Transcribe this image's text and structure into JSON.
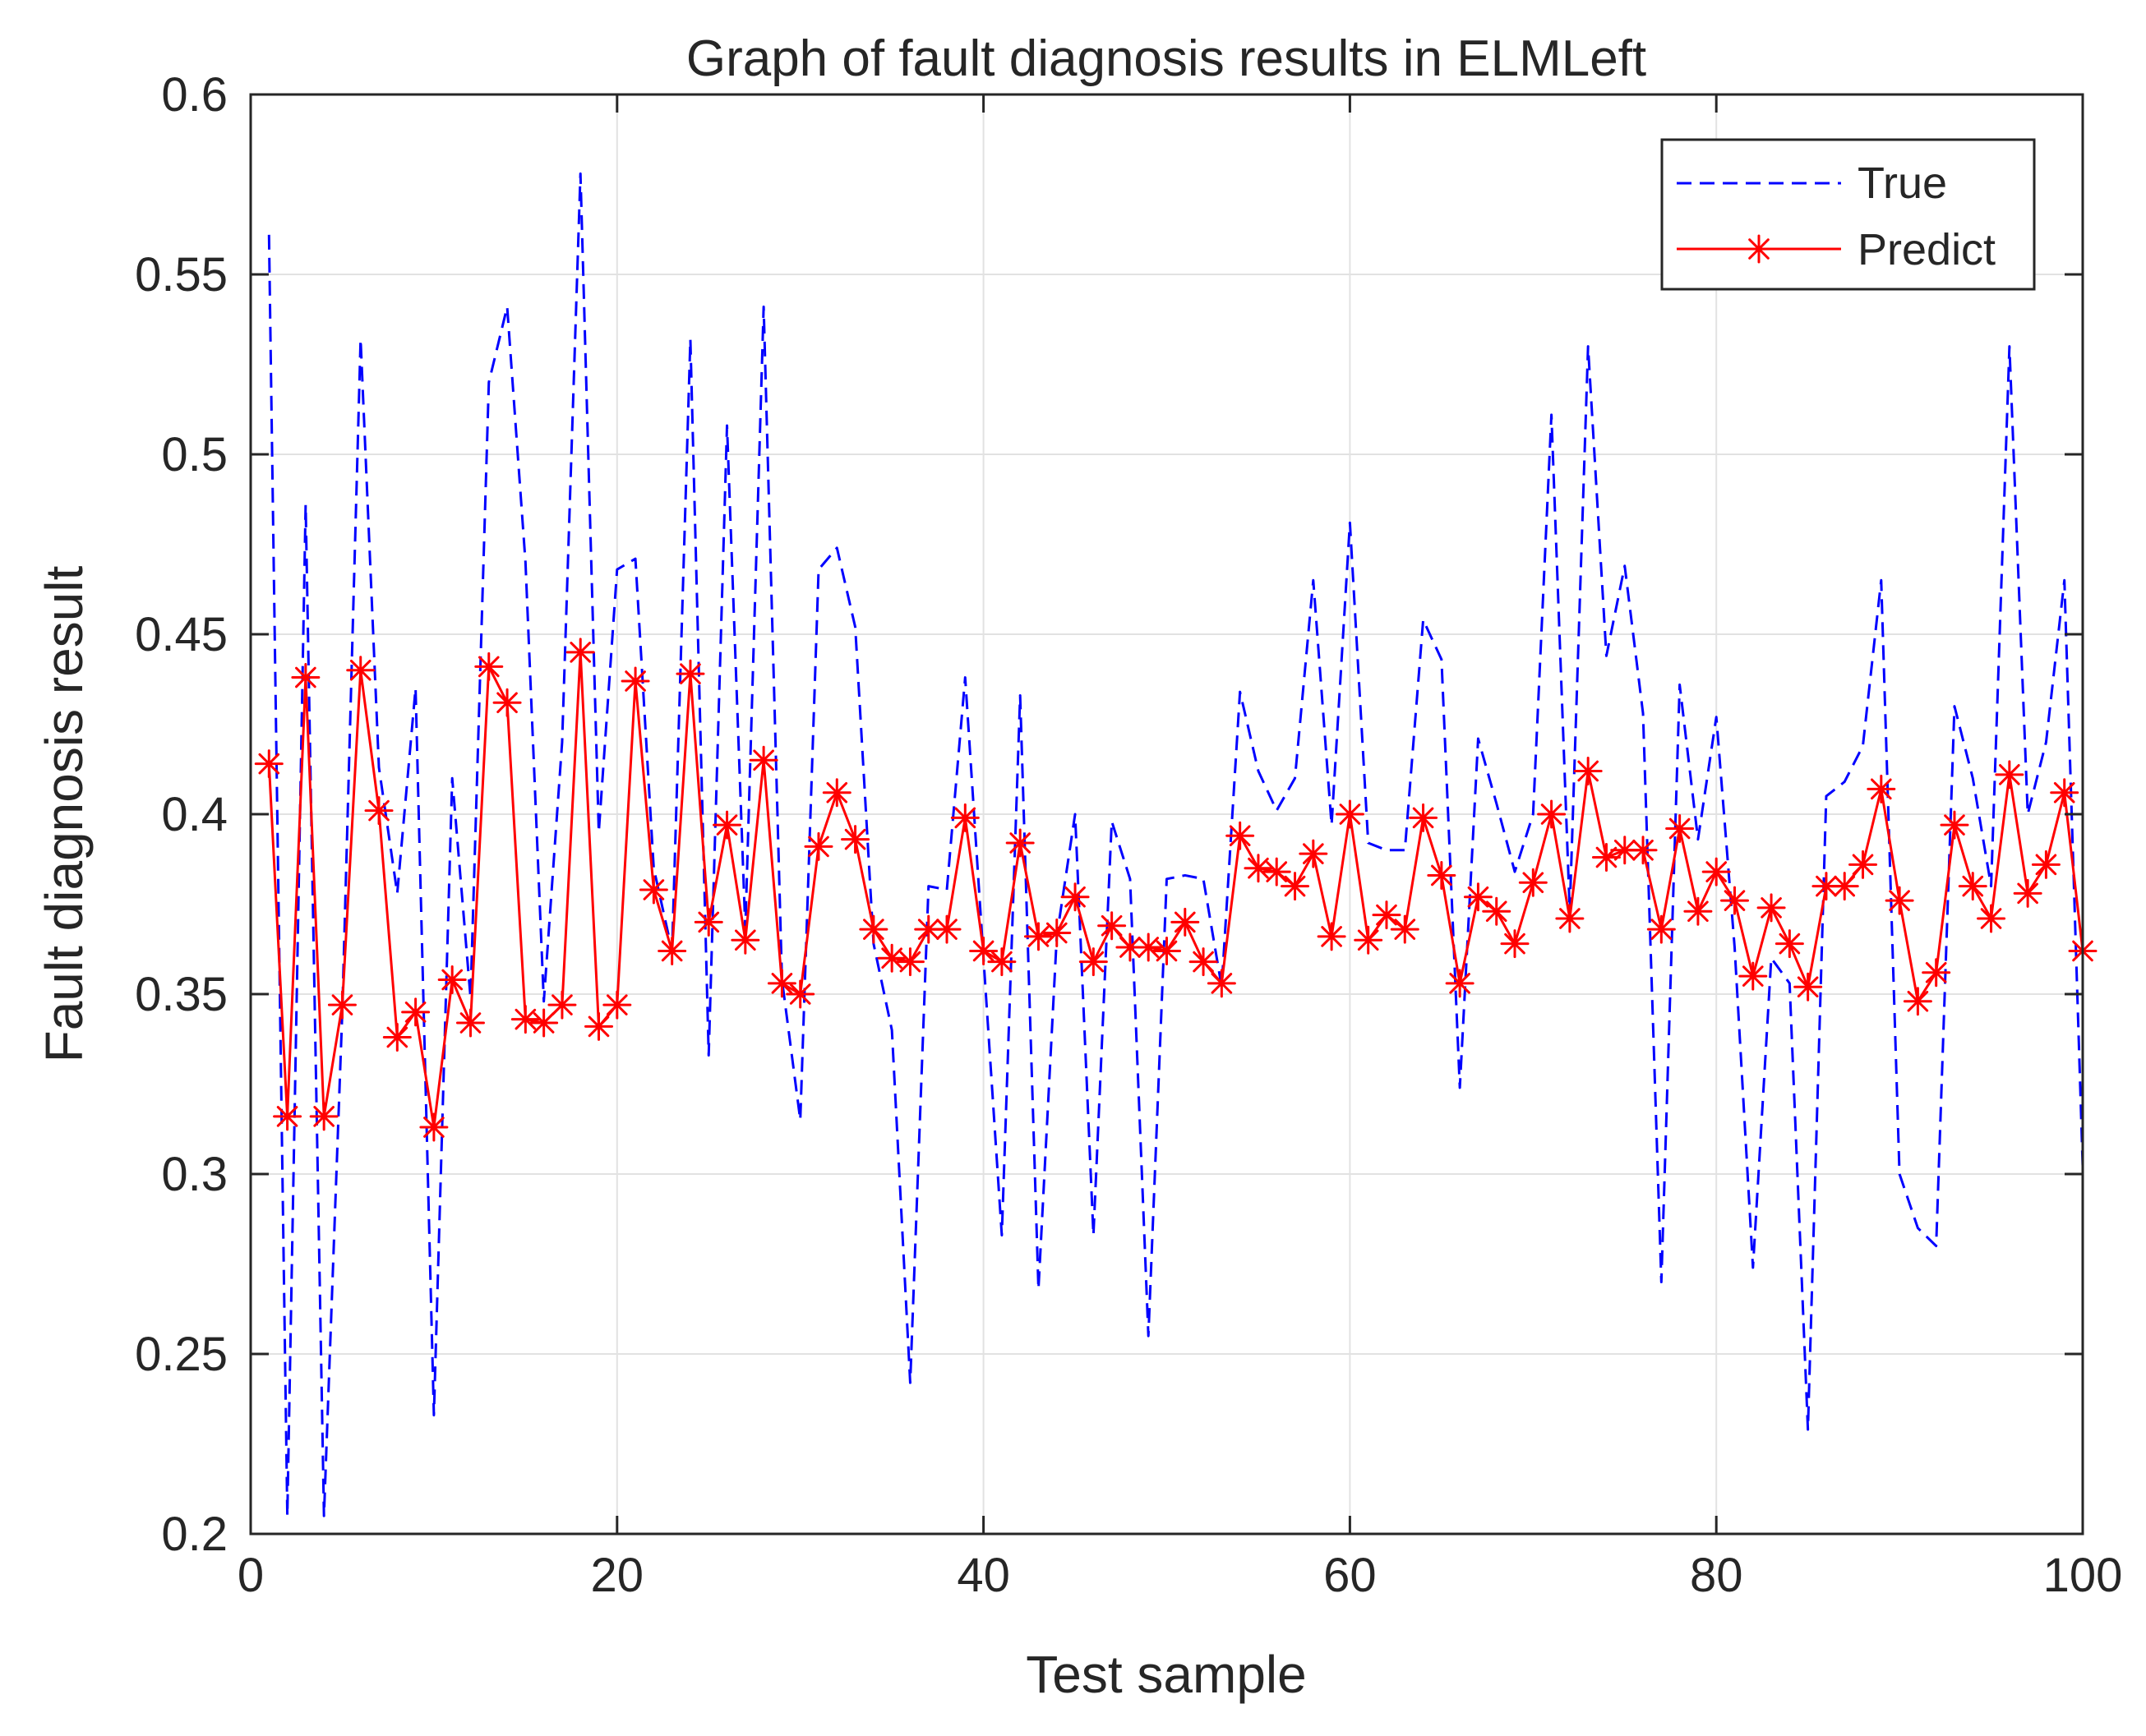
{
  "chart_data": {
    "type": "line",
    "title": "Graph of fault diagnosis results in ELMLeft",
    "xlabel": "Test sample",
    "ylabel": "Fault diagnosis result",
    "xlim": [
      0,
      100
    ],
    "ylim": [
      0.2,
      0.6
    ],
    "xticks": [
      0,
      20,
      40,
      60,
      80,
      100
    ],
    "xtick_labels": [
      "0",
      "20",
      "40",
      "60",
      "80",
      "100"
    ],
    "yticks": [
      0.2,
      0.25,
      0.3,
      0.35,
      0.4,
      0.45,
      0.5,
      0.55,
      0.6
    ],
    "ytick_labels": [
      "0.2",
      "0.25",
      "0.3",
      "0.35",
      "0.4",
      "0.45",
      "0.5",
      "0.55",
      "0.6"
    ],
    "grid": true,
    "legend_position": "top-right",
    "x": [
      1,
      2,
      3,
      4,
      5,
      6,
      7,
      8,
      9,
      10,
      11,
      12,
      13,
      14,
      15,
      16,
      17,
      18,
      19,
      20,
      21,
      22,
      23,
      24,
      25,
      26,
      27,
      28,
      29,
      30,
      31,
      32,
      33,
      34,
      35,
      36,
      37,
      38,
      39,
      40,
      41,
      42,
      43,
      44,
      45,
      46,
      47,
      48,
      49,
      50,
      51,
      52,
      53,
      54,
      55,
      56,
      57,
      58,
      59,
      60,
      61,
      62,
      63,
      64,
      65,
      66,
      67,
      68,
      69,
      70,
      71,
      72,
      73,
      74,
      75,
      76,
      77,
      78,
      79,
      80,
      81,
      82,
      83,
      84,
      85,
      86,
      87,
      88,
      89,
      90,
      91,
      92,
      93,
      94,
      95,
      96,
      97,
      98,
      99,
      100
    ],
    "series": [
      {
        "name": "True",
        "color": "#0000ff",
        "style": "dashed",
        "values": [
          0.561,
          0.205,
          0.486,
          0.205,
          0.345,
          0.532,
          0.413,
          0.378,
          0.435,
          0.233,
          0.41,
          0.349,
          0.52,
          0.541,
          0.47,
          0.348,
          0.42,
          0.578,
          0.395,
          0.468,
          0.471,
          0.385,
          0.362,
          0.532,
          0.333,
          0.508,
          0.368,
          0.541,
          0.354,
          0.315,
          0.468,
          0.474,
          0.452,
          0.364,
          0.34,
          0.242,
          0.38,
          0.379,
          0.438,
          0.36,
          0.283,
          0.433,
          0.268,
          0.366,
          0.4,
          0.283,
          0.398,
          0.382,
          0.255,
          0.382,
          0.383,
          0.382,
          0.352,
          0.434,
          0.412,
          0.401,
          0.41,
          0.465,
          0.397,
          0.481,
          0.392,
          0.39,
          0.39,
          0.454,
          0.443,
          0.324,
          0.421,
          0.403,
          0.384,
          0.4,
          0.511,
          0.373,
          0.53,
          0.444,
          0.469,
          0.428,
          0.27,
          0.436,
          0.393,
          0.427,
          0.363,
          0.274,
          0.36,
          0.353,
          0.229,
          0.405,
          0.409,
          0.419,
          0.465,
          0.3,
          0.285,
          0.28,
          0.43,
          0.41,
          0.38,
          0.53,
          0.4,
          0.42,
          0.465,
          0.302
        ]
      },
      {
        "name": "Predict",
        "color": "#ff0000",
        "style": "solid",
        "marker": "asterisk",
        "values": [
          0.414,
          0.316,
          0.438,
          0.316,
          0.347,
          0.44,
          0.401,
          0.338,
          0.345,
          0.313,
          0.354,
          0.342,
          0.441,
          0.431,
          0.343,
          0.342,
          0.347,
          0.445,
          0.341,
          0.347,
          0.437,
          0.379,
          0.362,
          0.439,
          0.37,
          0.397,
          0.365,
          0.415,
          0.353,
          0.35,
          0.391,
          0.406,
          0.393,
          0.368,
          0.36,
          0.359,
          0.368,
          0.368,
          0.399,
          0.362,
          0.359,
          0.392,
          0.366,
          0.367,
          0.377,
          0.359,
          0.369,
          0.363,
          0.363,
          0.362,
          0.37,
          0.359,
          0.353,
          0.394,
          0.385,
          0.384,
          0.38,
          0.389,
          0.366,
          0.4,
          0.365,
          0.372,
          0.368,
          0.399,
          0.383,
          0.353,
          0.377,
          0.373,
          0.364,
          0.381,
          0.4,
          0.371,
          0.412,
          0.388,
          0.39,
          0.39,
          0.368,
          0.396,
          0.373,
          0.384,
          0.376,
          0.355,
          0.374,
          0.364,
          0.352,
          0.38,
          0.38,
          0.386,
          0.407,
          0.376,
          0.348,
          0.356,
          0.397,
          0.38,
          0.371,
          0.411,
          0.378,
          0.386,
          0.406,
          0.362
        ]
      }
    ]
  }
}
